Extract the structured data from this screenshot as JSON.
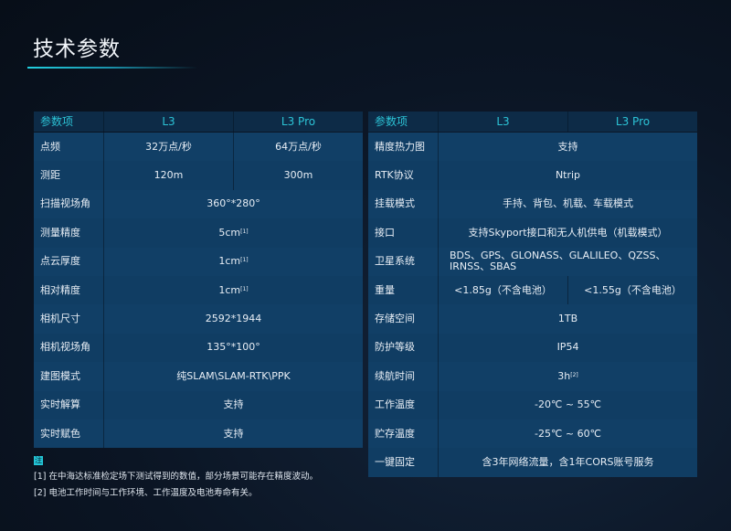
{
  "title": "技术参数",
  "accent": "#2cc3d6",
  "left_table": {
    "headers": [
      "参数项",
      "L3",
      "L3 Pro"
    ],
    "rows": [
      {
        "label": "点频",
        "values": [
          "32万点/秒",
          "64万点/秒"
        ]
      },
      {
        "label": "测距",
        "values": [
          "120m",
          "300m"
        ]
      },
      {
        "label": "扫描视场角",
        "values": [
          "360°*280°"
        ]
      },
      {
        "label": "测量精度",
        "values": [
          "5cm"
        ],
        "sup": "[1]"
      },
      {
        "label": "点云厚度",
        "values": [
          "1cm"
        ],
        "sup": "[1]"
      },
      {
        "label": "相对精度",
        "values": [
          "1cm"
        ],
        "sup": "[1]"
      },
      {
        "label": "相机尺寸",
        "values": [
          "2592*1944"
        ]
      },
      {
        "label": "相机视场角",
        "values": [
          "135°*100°"
        ]
      },
      {
        "label": "建图模式",
        "values": [
          "纯SLAM\\SLAM-RTK\\PPK"
        ]
      },
      {
        "label": "实时解算",
        "values": [
          "支持"
        ]
      },
      {
        "label": "实时赋色",
        "values": [
          "支持"
        ]
      }
    ]
  },
  "right_table": {
    "headers": [
      "参数项",
      "L3",
      "L3 Pro"
    ],
    "rows": [
      {
        "label": "精度热力图",
        "values": [
          "支持"
        ]
      },
      {
        "label": "RTK协议",
        "values": [
          "Ntrip"
        ]
      },
      {
        "label": "挂载模式",
        "values": [
          "手持、背包、机载、车载模式"
        ]
      },
      {
        "label": "接口",
        "values": [
          "支持Skyport接口和无人机供电（机载模式）"
        ]
      },
      {
        "label": "卫星系统",
        "values": [
          "BDS、GPS、GLONASS、GLALILEO、QZSS、IRNSS、SBAS"
        ],
        "align": "left"
      },
      {
        "label": "重量",
        "values": [
          "<1.85g（不含电池）",
          "<1.55g（不含电池）"
        ]
      },
      {
        "label": "存储空间",
        "values": [
          "1TB"
        ]
      },
      {
        "label": "防护等级",
        "values": [
          "IP54"
        ]
      },
      {
        "label": "续航时间",
        "values": [
          "3h"
        ],
        "sup": "[2]"
      },
      {
        "label": "工作温度",
        "values": [
          "-20℃ ~ 55℃"
        ]
      },
      {
        "label": "贮存温度",
        "values": [
          "-25℃ ~ 60℃"
        ]
      },
      {
        "label": "一键固定",
        "values": [
          "含3年网络流量，含1年CORS账号服务"
        ]
      }
    ]
  },
  "notes": {
    "badge": "注",
    "items": [
      "[1] 在中海达标准检定场下测试得到的数值，部分场景可能存在精度波动。",
      "[2] 电池工作时间与工作环境、工作温度及电池寿命有关。"
    ]
  }
}
